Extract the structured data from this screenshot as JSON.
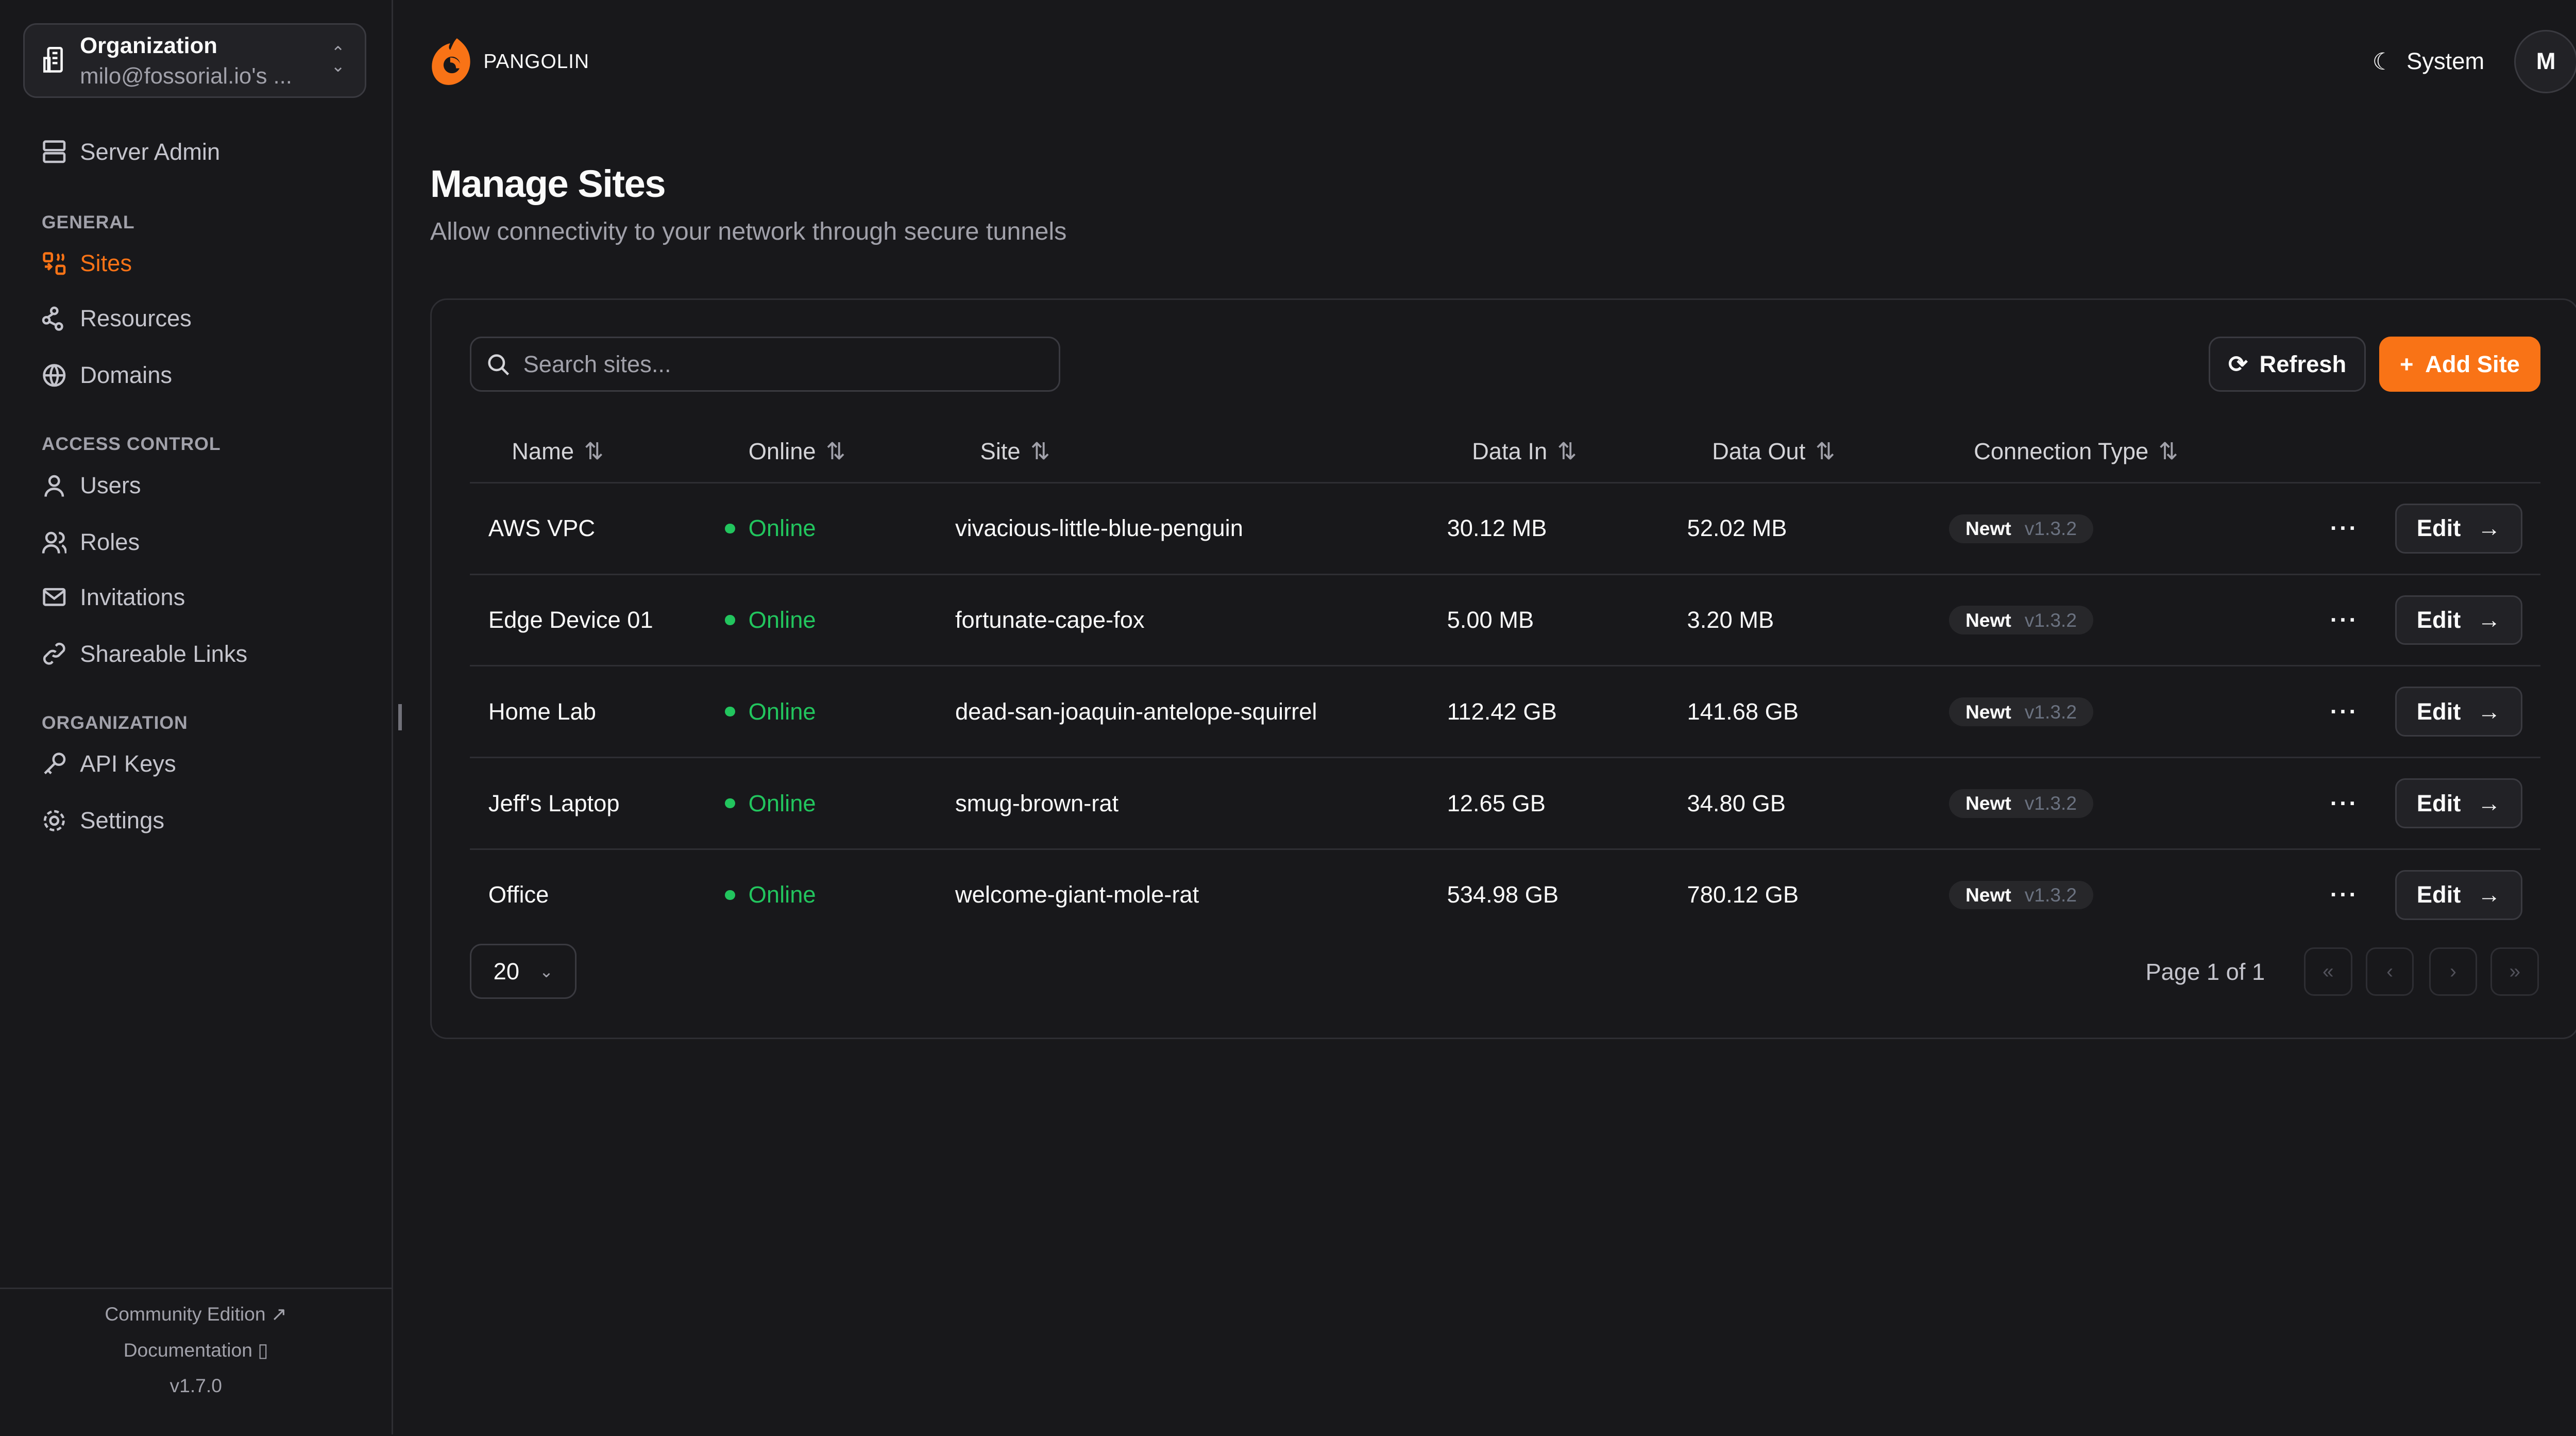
{
  "sidebar": {
    "org": {
      "title": "Organization",
      "name": "milo@fossorial.io's ..."
    },
    "server_admin": "Server Admin",
    "sections": [
      {
        "title": "GENERAL",
        "items": [
          "Sites",
          "Resources",
          "Domains"
        ]
      },
      {
        "title": "ACCESS CONTROL",
        "items": [
          "Users",
          "Roles",
          "Invitations",
          "Shareable Links"
        ]
      },
      {
        "title": "ORGANIZATION",
        "items": [
          "API Keys",
          "Settings"
        ]
      }
    ],
    "active": "Sites",
    "footer": {
      "community": "Community Edition",
      "docs": "Documentation",
      "version": "v1.7.0"
    }
  },
  "header": {
    "brand": "PANGOLIN",
    "theme": "System",
    "avatar": "M"
  },
  "page": {
    "title": "Manage Sites",
    "subtitle": "Allow connectivity to your network through secure tunnels"
  },
  "toolbar": {
    "search_placeholder": "Search sites...",
    "refresh": "Refresh",
    "add": "Add Site"
  },
  "table": {
    "columns": [
      "Name",
      "Online",
      "Site",
      "Data In",
      "Data Out",
      "Connection Type"
    ],
    "rows": [
      {
        "name": "AWS VPC",
        "online": "Online",
        "site": "vivacious-little-blue-penguin",
        "in": "30.12 MB",
        "out": "52.02 MB",
        "type": "Newt",
        "ver": "v1.3.2",
        "edit": "Edit"
      },
      {
        "name": "Edge Device 01",
        "online": "Online",
        "site": "fortunate-cape-fox",
        "in": "5.00 MB",
        "out": "3.20 MB",
        "type": "Newt",
        "ver": "v1.3.2",
        "edit": "Edit"
      },
      {
        "name": "Home Lab",
        "online": "Online",
        "site": "dead-san-joaquin-antelope-squirrel",
        "in": "112.42 GB",
        "out": "141.68 GB",
        "type": "Newt",
        "ver": "v1.3.2",
        "edit": "Edit"
      },
      {
        "name": "Jeff's Laptop",
        "online": "Online",
        "site": "smug-brown-rat",
        "in": "12.65 GB",
        "out": "34.80 GB",
        "type": "Newt",
        "ver": "v1.3.2",
        "edit": "Edit"
      },
      {
        "name": "Office",
        "online": "Online",
        "site": "welcome-giant-mole-rat",
        "in": "534.98 GB",
        "out": "780.12 GB",
        "type": "Newt",
        "ver": "v1.3.2",
        "edit": "Edit"
      }
    ]
  },
  "pagination": {
    "page_size": "20",
    "page_label": "Page 1 of 1"
  },
  "colors": {
    "accent": "#f97316",
    "online": "#22c55e",
    "background": "#18181b"
  }
}
